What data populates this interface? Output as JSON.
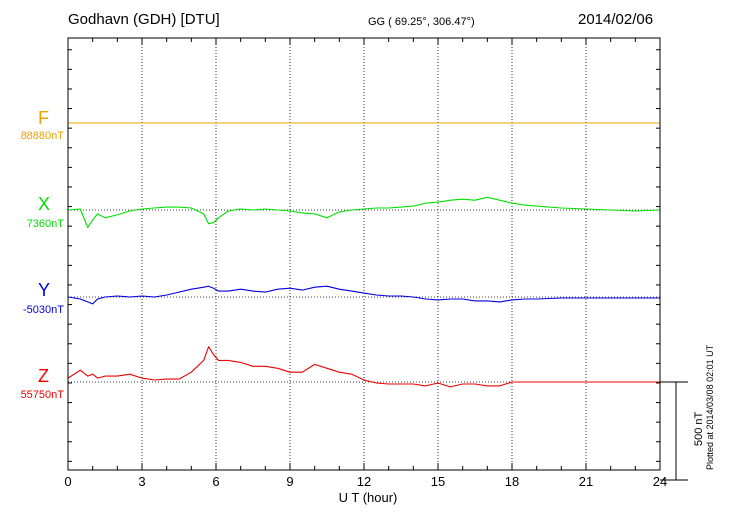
{
  "header": {
    "station": "Godhavn (GDH)  [DTU]",
    "coords": "GG ( 69.25°, 306.47°)",
    "date": "2014/02/06"
  },
  "plotted_note": "Plotted at 2014/03/08 02:01  UT",
  "colors": {
    "F": "#f0a000",
    "X": "#00e000",
    "Y": "#0000dd",
    "Z": "#ee0000"
  },
  "chart_data": {
    "type": "line",
    "title": "Godhavn (GDH)  [DTU]",
    "xlabel": "U T (hour)",
    "ylabel": "",
    "xlim": [
      0,
      24
    ],
    "x_ticks": [
      0,
      3,
      6,
      9,
      12,
      15,
      18,
      21,
      24
    ],
    "x_tick_labels": [
      "0",
      "3",
      "6",
      "9",
      "12",
      "15",
      "18",
      "21",
      "24"
    ],
    "grid": true,
    "scale_bar_nT": 500,
    "scale_bar_label": "500 nT",
    "x": [
      0,
      0.5,
      0.8,
      1.0,
      1.2,
      1.5,
      2.0,
      2.5,
      3.0,
      3.5,
      4.0,
      4.5,
      5.0,
      5.5,
      5.7,
      5.9,
      6.1,
      6.5,
      7.0,
      7.5,
      8.0,
      8.5,
      9.0,
      9.5,
      10.0,
      10.5,
      11.0,
      11.5,
      12.0,
      12.5,
      13.0,
      13.5,
      14.0,
      14.5,
      15.0,
      15.5,
      16.0,
      16.5,
      17.0,
      17.5,
      18.0,
      18.5,
      19.0,
      20.0,
      21.0,
      22.0,
      23.0,
      24.0
    ],
    "series": [
      {
        "name": "F",
        "baseline_label": "88880nT",
        "baseline_nT": 88880,
        "values": [
          88880,
          88880,
          88880,
          88880,
          88880,
          88880,
          88880,
          88880,
          88880,
          88880,
          88880,
          88880,
          88880,
          88880,
          88880,
          88880,
          88880,
          88880,
          88880,
          88880,
          88880,
          88880,
          88880,
          88880,
          88880,
          88880,
          88880,
          88880,
          88880,
          88880,
          88880,
          88880,
          88880,
          88880,
          88880,
          88880,
          88880,
          88880,
          88880,
          88880,
          88880,
          88880,
          88880,
          88880,
          88880,
          88880,
          88880,
          88880
        ]
      },
      {
        "name": "X",
        "baseline_label": "7360nT",
        "baseline_nT": 7360,
        "values": [
          7360,
          7365,
          7270,
          7310,
          7340,
          7320,
          7335,
          7355,
          7365,
          7370,
          7375,
          7375,
          7370,
          7340,
          7290,
          7295,
          7320,
          7355,
          7365,
          7360,
          7365,
          7360,
          7355,
          7345,
          7340,
          7320,
          7350,
          7360,
          7365,
          7370,
          7370,
          7375,
          7380,
          7395,
          7400,
          7410,
          7415,
          7410,
          7425,
          7410,
          7395,
          7385,
          7380,
          7370,
          7365,
          7360,
          7355,
          7360
        ]
      },
      {
        "name": "Y",
        "baseline_label": "-5030nT",
        "baseline_nT": -5030,
        "values": [
          -5030,
          -5040,
          -5055,
          -5065,
          -5040,
          -5030,
          -5025,
          -5030,
          -5025,
          -5030,
          -5020,
          -5005,
          -4990,
          -4980,
          -4975,
          -4985,
          -5000,
          -5000,
          -4990,
          -5000,
          -5005,
          -4990,
          -4985,
          -4995,
          -4980,
          -4975,
          -4990,
          -5000,
          -5010,
          -5020,
          -5025,
          -5025,
          -5030,
          -5040,
          -5045,
          -5040,
          -5040,
          -5050,
          -5050,
          -5055,
          -5045,
          -5040,
          -5040,
          -5035,
          -5035,
          -5035,
          -5035,
          -5035
        ]
      },
      {
        "name": "Z",
        "baseline_label": "55750nT",
        "baseline_nT": 55750,
        "values": [
          55770,
          55810,
          55780,
          55790,
          55770,
          55780,
          55780,
          55790,
          55770,
          55760,
          55765,
          55765,
          55800,
          55860,
          55930,
          55890,
          55860,
          55860,
          55850,
          55830,
          55830,
          55820,
          55800,
          55800,
          55840,
          55820,
          55800,
          55790,
          55760,
          55745,
          55740,
          55740,
          55740,
          55730,
          55745,
          55725,
          55740,
          55740,
          55730,
          55730,
          55750,
          55750,
          55750,
          55750,
          55750,
          55750,
          55750,
          55750
        ]
      }
    ]
  }
}
